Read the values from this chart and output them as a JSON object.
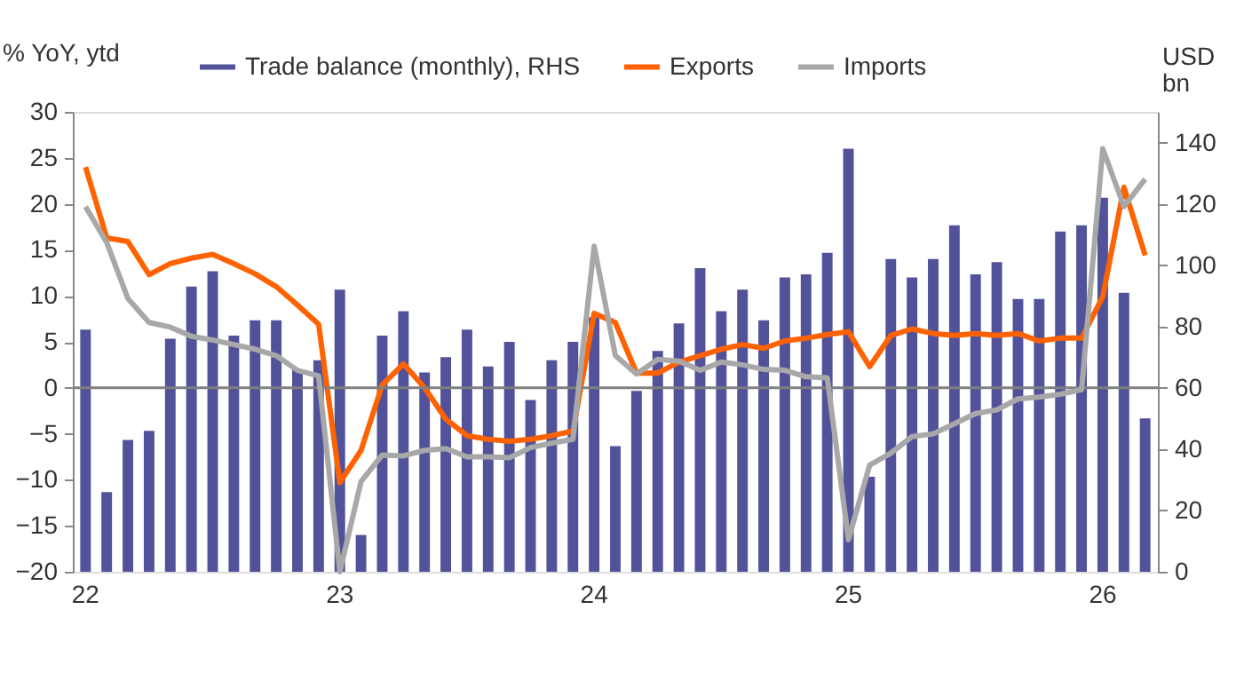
{
  "chart_data": {
    "type": "line",
    "ylabel": "% YoY, ytd",
    "y2label": "USD bn",
    "categories": [
      "22",
      null,
      null,
      null,
      null,
      null,
      null,
      null,
      null,
      null,
      null,
      null,
      "23",
      null,
      null,
      null,
      null,
      null,
      null,
      null,
      null,
      null,
      null,
      null,
      "24",
      null,
      null,
      null,
      null,
      null,
      null,
      null,
      null,
      null,
      null,
      null,
      "25",
      null,
      null,
      null,
      null,
      null,
      null,
      null,
      null,
      null,
      null,
      null,
      "26",
      null,
      null
    ],
    "series": [
      {
        "name": "Trade balance (monthly), RHS",
        "type": "bar",
        "axis": "y2",
        "color": "#51529a",
        "values": [
          79,
          26,
          43,
          46,
          76,
          93,
          98,
          77,
          82,
          82,
          66,
          69,
          92,
          12,
          77,
          85,
          65,
          70,
          79,
          67,
          75,
          56,
          69,
          75,
          83,
          41,
          59,
          72,
          81,
          99,
          85,
          92,
          82,
          96,
          97,
          104,
          138,
          31,
          102,
          96,
          102,
          113,
          97,
          101,
          89,
          89,
          111,
          113,
          122,
          91,
          50
        ]
      },
      {
        "name": "Exports",
        "color": "#ff6200",
        "values": [
          24,
          16.3,
          15.9,
          12.3,
          13.5,
          14.1,
          14.5,
          13.5,
          12.4,
          11,
          9,
          6.9,
          -10.3,
          -6.8,
          0.3,
          2.6,
          0,
          -3.4,
          -5.2,
          -5.6,
          -5.8,
          -5.6,
          -5.2,
          -4.7,
          8.1,
          7.1,
          1.6,
          1.6,
          2.8,
          3.5,
          4.2,
          4.7,
          4.3,
          5.1,
          5.4,
          5.8,
          6.1,
          2.3,
          5.7,
          6.4,
          5.9,
          5.7,
          5.9,
          5.7,
          5.9,
          5.1,
          5.4,
          5.4,
          9.9,
          21.8,
          14.4
        ]
      },
      {
        "name": "Imports",
        "color": "#a8a8a8",
        "values": [
          19.7,
          15.8,
          9.7,
          7.1,
          6.6,
          5.6,
          5.2,
          4.7,
          4.2,
          3.5,
          1.9,
          1.3,
          -20,
          -10.2,
          -7.3,
          -7.4,
          -6.8,
          -6.6,
          -7.5,
          -7.5,
          -7.6,
          -6.5,
          -6,
          -5.6,
          15.4,
          3.5,
          1.5,
          3.1,
          2.9,
          1.9,
          2.8,
          2.5,
          2,
          1.9,
          1.2,
          1.1,
          -16.5,
          -8.4,
          -7.1,
          -5.3,
          -5,
          -3.9,
          -2.8,
          -2.4,
          -1.2,
          -1,
          -0.7,
          -0.2,
          26,
          19.7,
          22.7
        ]
      }
    ],
    "ylim": [
      -20,
      30
    ],
    "yticks": [
      -20,
      -15,
      -10,
      -5,
      0,
      5,
      10,
      15,
      20,
      25,
      30
    ],
    "y2lim": [
      0,
      150
    ],
    "y2ticks": [
      0,
      20,
      40,
      60,
      80,
      100,
      120,
      140
    ],
    "ref_lines": [
      {
        "axis": "y",
        "value": 0,
        "color": "#7f7f7f"
      }
    ],
    "grid": false,
    "legend": "top",
    "line_style": "solid",
    "marker": "none"
  }
}
